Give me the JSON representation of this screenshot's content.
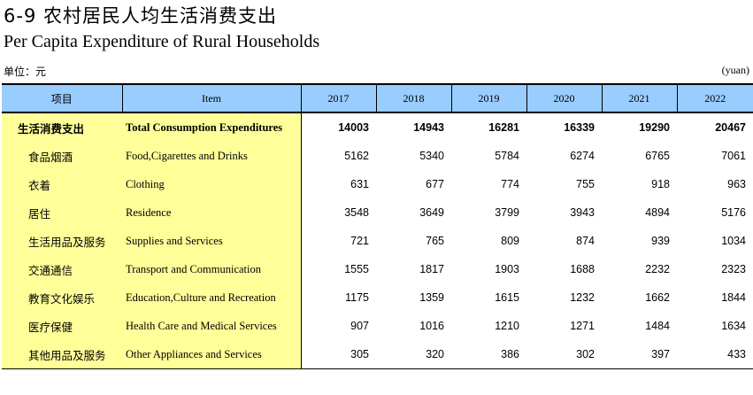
{
  "title_cn": "6-9  农村居民人均生活消费支出",
  "title_en": "Per Capita Expenditure of Rural Households",
  "unit_left": "单位：元",
  "unit_right": "(yuan)",
  "header": {
    "item_cn": "项目",
    "item_en": "Item",
    "years": [
      "2017",
      "2018",
      "2019",
      "2020",
      "2021",
      "2022"
    ]
  },
  "rows": [
    {
      "cn": "生活消费支出",
      "en": "Total Consumption Expenditures",
      "values": [
        "14003",
        "14943",
        "16281",
        "16339",
        "19290",
        "20467"
      ]
    },
    {
      "cn": "食品烟酒",
      "en": "Food,Cigarettes and Drinks",
      "values": [
        "5162",
        "5340",
        "5784",
        "6274",
        "6765",
        "7061"
      ]
    },
    {
      "cn": "衣着",
      "en": "Clothing",
      "values": [
        "631",
        "677",
        "774",
        "755",
        "918",
        "963"
      ]
    },
    {
      "cn": "居住",
      "en": "Residence",
      "values": [
        "3548",
        "3649",
        "3799",
        "3943",
        "4894",
        "5176"
      ]
    },
    {
      "cn": "生活用品及服务",
      "en": "Supplies and Services",
      "values": [
        "721",
        "765",
        "809",
        "874",
        "939",
        "1034"
      ]
    },
    {
      "cn": "交通通信",
      "en": "Transport and  Communication",
      "values": [
        "1555",
        "1817",
        "1903",
        "1688",
        "2232",
        "2323"
      ]
    },
    {
      "cn": "教育文化娱乐",
      "en": "Education,Culture and Recreation",
      "values": [
        "1175",
        "1359",
        "1615",
        "1232",
        "1662",
        "1844"
      ]
    },
    {
      "cn": "医疗保健",
      "en": "Health Care and Medical Services",
      "values": [
        "907",
        "1016",
        "1210",
        "1271",
        "1484",
        "1634"
      ]
    },
    {
      "cn": "其他用品及服务",
      "en": "Other Appliances and Services",
      "values": [
        "305",
        "320",
        "386",
        "302",
        "397",
        "433"
      ]
    }
  ]
}
